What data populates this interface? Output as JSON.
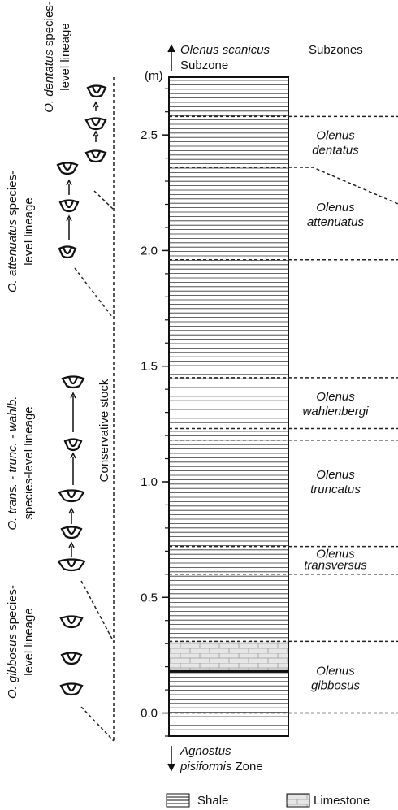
{
  "axis": {
    "unit": "(m)",
    "range": [
      -0.1,
      2.75
    ],
    "ticks": [
      {
        "value": 0,
        "label": "0.0"
      },
      {
        "value": 0.5,
        "label": "0.5"
      },
      {
        "value": 1,
        "label": "1.0"
      },
      {
        "value": 1.5,
        "label": "1.5"
      },
      {
        "value": 2,
        "label": "2.0"
      },
      {
        "value": 2.5,
        "label": "2.5"
      }
    ],
    "minor_tick_interval": 0.1
  },
  "top_label": {
    "italic": "Olenus scanicus",
    "rest": "Subzone"
  },
  "subzones_heading": "Subzones",
  "bottom_label": {
    "genus": "Agnostus",
    "species": "pisiformis",
    "rest": "Zone"
  },
  "boundaries": [
    2.58,
    2.36,
    1.96,
    1.45,
    1.23,
    1.18,
    0.72,
    0.6,
    0.31,
    0
  ],
  "limestone": {
    "from": 0.18,
    "to": 0.31
  },
  "subzones": [
    {
      "genus": "Olenus",
      "species": "dentatus"
    },
    {
      "genus": "Olenus",
      "species": "attenuatus"
    },
    {
      "genus": "Olenus",
      "species": "wahlenbergi"
    },
    {
      "genus": "Olenus",
      "species": "truncatus"
    },
    {
      "genus": "Olenus",
      "species": "transversus"
    },
    {
      "genus": "Olenus",
      "species": "gibbosus"
    }
  ],
  "lineages": [
    {
      "italic": "O. dentatus",
      "rest": " species-",
      "line2": "level lineage"
    },
    {
      "italic": "O. attenuatus",
      "rest": " species-",
      "line2": "level lineage"
    },
    {
      "italic": "O. trans. - trunc. - wahlb.",
      "rest": "",
      "line2": "species-level lineage"
    },
    {
      "italic": "O. gibbosus",
      "rest": " species-",
      "line2": "level lineage"
    }
  ],
  "conservative_stock": "Conservative stock",
  "legend": {
    "shale": "Shale",
    "limestone": "Limestone"
  }
}
